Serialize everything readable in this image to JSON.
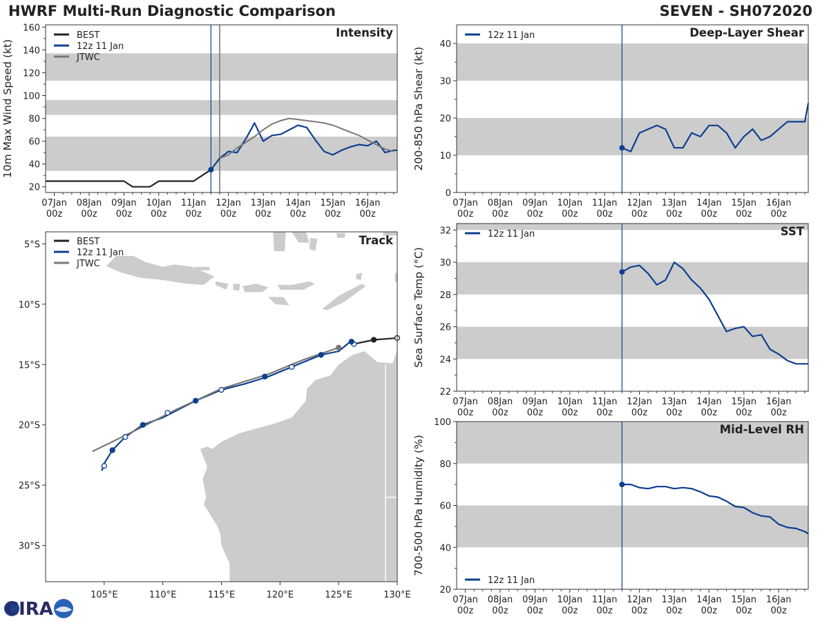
{
  "header": {
    "title": "HWRF Multi-Run Diagnostic Comparison",
    "storm_id": "SEVEN - SH072020"
  },
  "logo": {
    "text": "CIRA"
  },
  "colors": {
    "best": "#222222",
    "run": "#0d3f8f",
    "jtwc": "#777777",
    "band": "#cccccc",
    "land": "#cccccc",
    "axis": "#333333"
  },
  "time_axis": {
    "ticks": [
      {
        "day": "07Jan",
        "hour": "00z"
      },
      {
        "day": "08Jan",
        "hour": "00z"
      },
      {
        "day": "09Jan",
        "hour": "00z"
      },
      {
        "day": "10Jan",
        "hour": "00z"
      },
      {
        "day": "11Jan",
        "hour": "00z"
      },
      {
        "day": "12Jan",
        "hour": "00z"
      },
      {
        "day": "13Jan",
        "hour": "00z"
      },
      {
        "day": "14Jan",
        "hour": "00z"
      },
      {
        "day": "15Jan",
        "hour": "00z"
      },
      {
        "day": "16Jan",
        "hour": "00z"
      }
    ],
    "range_days": [
      6.75,
      16.85
    ]
  },
  "chart_data": [
    {
      "id": "intensity",
      "type": "line",
      "title": "Intensity",
      "ylabel": "10m Max Wind Speed (kt)",
      "ylim": [
        15,
        162
      ],
      "yticks": [
        20,
        40,
        60,
        80,
        100,
        120,
        140,
        160
      ],
      "bands": [
        [
          34,
          64
        ],
        [
          83,
          96
        ],
        [
          113,
          137
        ]
      ],
      "init_time": 11.5,
      "jtwc_time": 11.75,
      "legend": [
        "BEST",
        "12z 11 Jan",
        "JTWC"
      ],
      "series": [
        {
          "name": "BEST",
          "x": [
            6.75,
            7.0,
            7.5,
            8.0,
            8.5,
            9.0,
            9.25,
            9.5,
            9.75,
            10.0,
            10.5,
            11.0,
            11.5
          ],
          "y": [
            25,
            25,
            25,
            25,
            25,
            25,
            20,
            20,
            20,
            25,
            25,
            25,
            35
          ]
        },
        {
          "name": "12z 11 Jan",
          "x": [
            11.5,
            11.75,
            12.0,
            12.25,
            12.5,
            12.75,
            13.0,
            13.25,
            13.5,
            13.75,
            14.0,
            14.25,
            14.5,
            14.75,
            15.0,
            15.25,
            15.5,
            15.75,
            16.0,
            16.25,
            16.5,
            16.75,
            16.85
          ],
          "y": [
            35,
            45,
            51,
            50,
            62,
            76,
            60,
            65,
            66,
            70,
            74,
            72,
            61,
            51,
            48,
            52,
            55,
            57,
            56,
            60,
            50,
            52,
            52
          ]
        },
        {
          "name": "JTWC",
          "x": [
            11.75,
            12.0,
            12.25,
            12.5,
            12.75,
            13.0,
            13.25,
            13.5,
            13.75,
            14.0,
            14.25,
            14.5,
            14.75,
            15.0,
            15.25,
            15.5,
            15.75,
            16.0,
            16.25,
            16.5,
            16.75
          ],
          "y": [
            45,
            48,
            54,
            59,
            64,
            70,
            75,
            78,
            80,
            79,
            78,
            77,
            76,
            74,
            71,
            68,
            65,
            61,
            57,
            53,
            51
          ]
        }
      ]
    },
    {
      "id": "shear",
      "type": "line",
      "title": "Deep-Layer Shear",
      "ylabel": "200-850 hPa Shear (kt)",
      "ylim": [
        0,
        45
      ],
      "yticks": [
        0,
        10,
        20,
        30,
        40
      ],
      "bands": [
        [
          10,
          20
        ],
        [
          30,
          40
        ]
      ],
      "init_time": 11.5,
      "legend": [
        "12z 11 Jan"
      ],
      "series": [
        {
          "name": "12z 11 Jan",
          "x": [
            11.5,
            11.75,
            12.0,
            12.25,
            12.5,
            12.75,
            13.0,
            13.25,
            13.5,
            13.75,
            14.0,
            14.25,
            14.5,
            14.75,
            15.0,
            15.25,
            15.5,
            15.75,
            16.0,
            16.25,
            16.5,
            16.75,
            16.85
          ],
          "y": [
            12,
            11,
            16,
            17,
            18,
            17,
            12,
            12,
            16,
            15,
            18,
            18,
            16,
            12,
            15,
            17,
            14,
            15,
            17,
            19,
            19,
            19,
            24
          ]
        }
      ]
    },
    {
      "id": "sst",
      "type": "line",
      "title": "SST",
      "ylabel": "Sea Surface Temp (°C)",
      "ylim": [
        22,
        32.4
      ],
      "yticks": [
        22,
        24,
        26,
        28,
        30,
        32
      ],
      "bands": [
        [
          24,
          26
        ],
        [
          28,
          30
        ],
        [
          32,
          32.4
        ]
      ],
      "init_time": 11.5,
      "legend": [
        "12z 11 Jan"
      ],
      "series": [
        {
          "name": "12z 11 Jan",
          "x": [
            11.5,
            11.75,
            12.0,
            12.25,
            12.5,
            12.75,
            13.0,
            13.25,
            13.5,
            13.75,
            14.0,
            14.25,
            14.5,
            14.75,
            15.0,
            15.25,
            15.5,
            15.75,
            16.0,
            16.25,
            16.5,
            16.75,
            16.85
          ],
          "y": [
            29.4,
            29.7,
            29.8,
            29.3,
            28.6,
            28.9,
            30.0,
            29.6,
            28.9,
            28.4,
            27.7,
            26.7,
            25.7,
            25.9,
            26.0,
            25.4,
            25.5,
            24.6,
            24.3,
            23.9,
            23.7,
            23.7,
            23.7
          ]
        }
      ]
    },
    {
      "id": "rh",
      "type": "line",
      "title": "Mid-Level RH",
      "ylabel": "700-500 hPa Humidity (%)",
      "ylim": [
        20,
        100
      ],
      "yticks": [
        20,
        40,
        60,
        80,
        100
      ],
      "bands": [
        [
          40,
          60
        ],
        [
          80,
          100
        ]
      ],
      "init_time": 11.5,
      "legend": [
        "12z 11 Jan"
      ],
      "series": [
        {
          "name": "12z 11 Jan",
          "x": [
            11.5,
            11.75,
            12.0,
            12.25,
            12.5,
            12.75,
            13.0,
            13.25,
            13.5,
            13.75,
            14.0,
            14.25,
            14.5,
            14.75,
            15.0,
            15.25,
            15.5,
            15.75,
            16.0,
            16.25,
            16.5,
            16.75,
            16.85
          ],
          "y": [
            70,
            70,
            68.5,
            68,
            69,
            69,
            68,
            68.5,
            68,
            66.5,
            64.5,
            64,
            62,
            59.5,
            59,
            56.5,
            55,
            54.5,
            51,
            49.5,
            49,
            47.5,
            46.5
          ]
        }
      ]
    },
    {
      "id": "track",
      "type": "scatter",
      "title": "Track",
      "xlim": [
        100,
        130
      ],
      "ylim": [
        -33,
        -4
      ],
      "xticks": [
        {
          "v": 105,
          "l": "105°E"
        },
        {
          "v": 110,
          "l": "110°E"
        },
        {
          "v": 115,
          "l": "115°E"
        },
        {
          "v": 120,
          "l": "120°E"
        },
        {
          "v": 125,
          "l": "125°E"
        },
        {
          "v": 130,
          "l": "130°E"
        }
      ],
      "yticks": [
        {
          "v": -5,
          "l": "5°S"
        },
        {
          "v": -10,
          "l": "10°S"
        },
        {
          "v": -15,
          "l": "15°S"
        },
        {
          "v": -20,
          "l": "20°S"
        },
        {
          "v": -25,
          "l": "25°S"
        },
        {
          "v": -30,
          "l": "30°S"
        }
      ],
      "legend": [
        "BEST",
        "12z 11 Jan",
        "JTWC"
      ],
      "series": [
        {
          "name": "BEST",
          "lon": [
            130.0,
            128.0,
            126.3
          ],
          "lat": [
            -12.8,
            -12.95,
            -13.3
          ]
        },
        {
          "name": "12z 11 Jan",
          "lon": [
            126.0,
            125.0,
            123.5,
            121.0,
            119.0,
            117.0,
            115.0,
            112.8,
            111.0,
            110.0,
            108.3,
            106.8,
            105.7,
            105.0,
            104.8,
            104.8
          ],
          "lat": [
            -13.1,
            -13.9,
            -14.2,
            -15.2,
            -16.0,
            -16.6,
            -17.1,
            -18.0,
            -18.9,
            -19.4,
            -20.0,
            -21.0,
            -22.1,
            -23.2,
            -23.8,
            -23.8
          ]
        },
        {
          "name": "JTWC",
          "lon": [
            125.0,
            122.0,
            119.0,
            115.0,
            111.0,
            108.0,
            104.0
          ],
          "lat": [
            -13.6,
            -14.6,
            -15.8,
            -17.0,
            -18.8,
            -20.3,
            -22.2
          ]
        }
      ],
      "markers": [
        {
          "lon": 130.0,
          "lat": -12.8,
          "kind": "best-open"
        },
        {
          "lon": 128.0,
          "lat": -12.95,
          "kind": "best-filled"
        },
        {
          "lon": 126.3,
          "lat": -13.3,
          "kind": "run-open"
        },
        {
          "lon": 126.1,
          "lat": -13.1,
          "kind": "run-filled"
        },
        {
          "lon": 125.0,
          "lat": -13.6,
          "kind": "jtwc-filled"
        },
        {
          "lon": 123.5,
          "lat": -14.2,
          "kind": "run-filled"
        },
        {
          "lon": 121.0,
          "lat": -15.2,
          "kind": "run-open"
        },
        {
          "lon": 118.7,
          "lat": -16.0,
          "kind": "run-filled"
        },
        {
          "lon": 115.0,
          "lat": -17.1,
          "kind": "run-open"
        },
        {
          "lon": 112.8,
          "lat": -18.0,
          "kind": "run-filled"
        },
        {
          "lon": 110.4,
          "lat": -19.0,
          "kind": "run-open"
        },
        {
          "lon": 108.3,
          "lat": -20.0,
          "kind": "run-filled"
        },
        {
          "lon": 106.8,
          "lat": -21.0,
          "kind": "run-open"
        },
        {
          "lon": 105.7,
          "lat": -22.1,
          "kind": "run-filled"
        },
        {
          "lon": 105.0,
          "lat": -23.4,
          "kind": "run-open"
        }
      ]
    }
  ]
}
